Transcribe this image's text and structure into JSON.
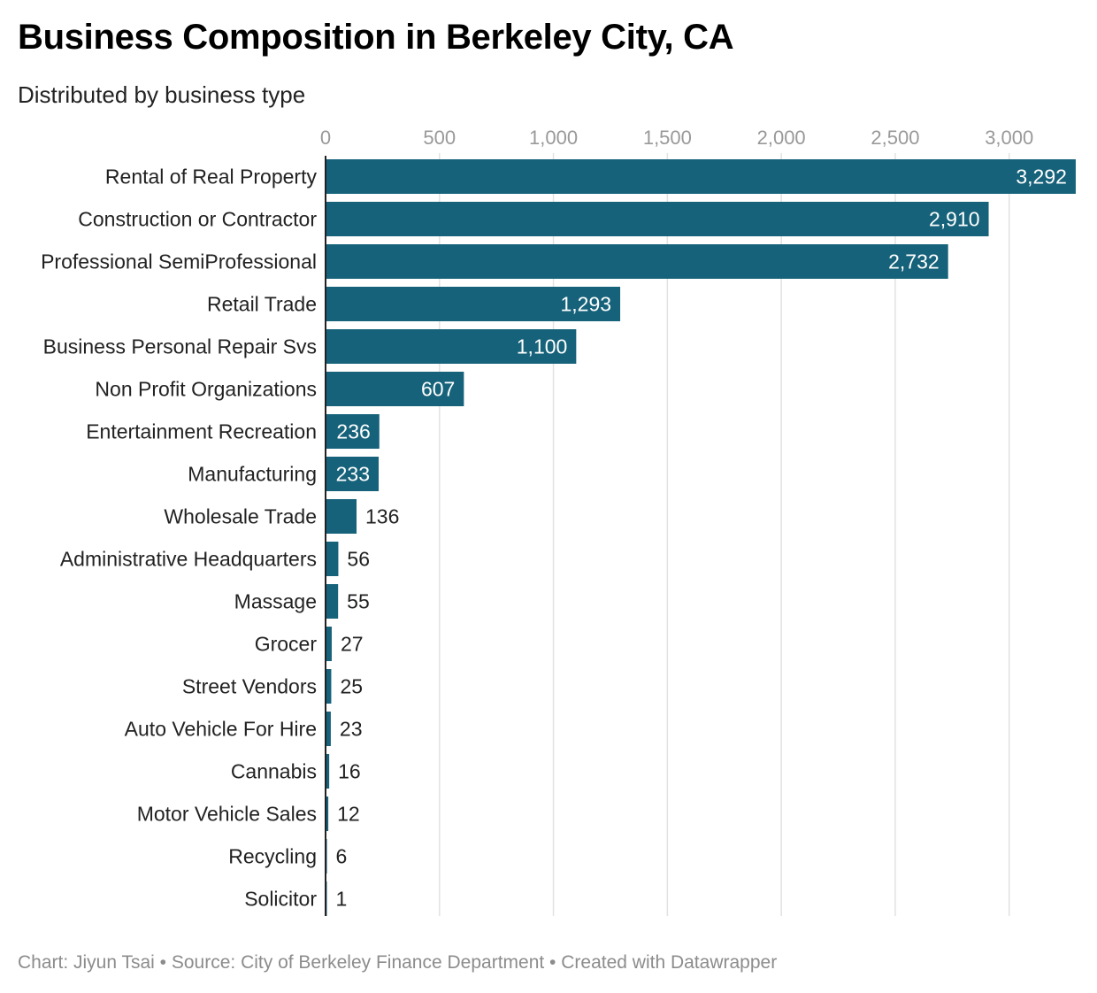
{
  "title": "Business Composition in Berkeley City, CA",
  "subtitle": "Distributed by business type",
  "footer": "Chart: Jiyun Tsai • Source: City of Berkeley Finance Department • Created with Datawrapper",
  "colors": {
    "bar": "#16627a",
    "grid": "#e2e2e2",
    "axis": "#222222",
    "label_inside": "#ffffff",
    "label_outside": "#222222"
  },
  "chart_data": {
    "type": "bar",
    "orientation": "horizontal",
    "title": "Business Composition in Berkeley City, CA",
    "subtitle": "Distributed by business type",
    "xlim": [
      0,
      3300
    ],
    "x_ticks": [
      0,
      500,
      1000,
      1500,
      2000,
      2500,
      3000
    ],
    "x_tick_labels": [
      "0",
      "500",
      "1,000",
      "1,500",
      "2,000",
      "2,500",
      "3,000"
    ],
    "grid": true,
    "categories": [
      "Rental of Real Property",
      "Construction or Contractor",
      "Professional SemiProfessional",
      "Retail Trade",
      "Business Personal Repair Svs",
      "Non Profit Organizations",
      "Entertainment Recreation",
      "Manufacturing",
      "Wholesale Trade",
      "Administrative Headquarters",
      "Massage",
      "Grocer",
      "Street Vendors",
      "Auto Vehicle For Hire",
      "Cannabis",
      "Motor Vehicle Sales",
      "Recycling",
      "Solicitor"
    ],
    "values": [
      3292,
      2910,
      2732,
      1293,
      1100,
      607,
      236,
      233,
      136,
      56,
      55,
      27,
      25,
      23,
      16,
      12,
      6,
      1
    ],
    "value_labels": [
      "3,292",
      "2,910",
      "2,732",
      "1,293",
      "1,100",
      "607",
      "236",
      "233",
      "136",
      "56",
      "55",
      "27",
      "25",
      "23",
      "16",
      "12",
      "6",
      "1"
    ]
  }
}
